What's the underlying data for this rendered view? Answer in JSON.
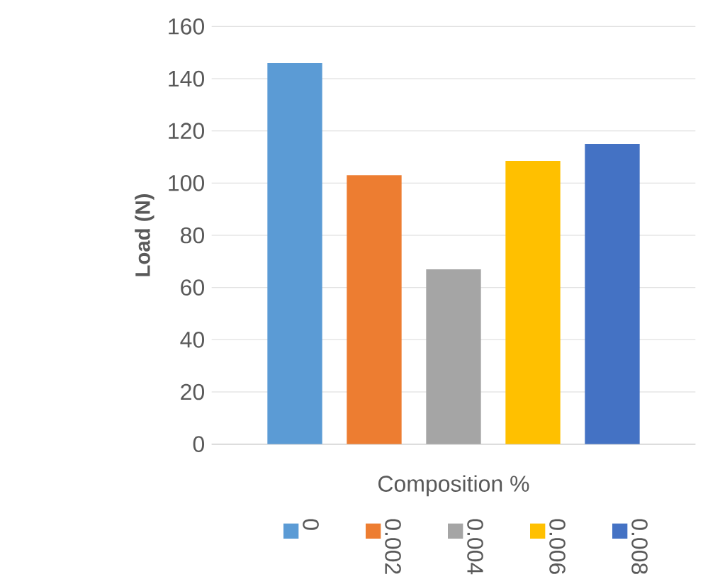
{
  "chart_data": {
    "type": "bar",
    "xlabel": "Composition %",
    "ylabel": "Load (N)",
    "categories": [
      null
    ],
    "series": [
      {
        "name": "0",
        "color": "#5b9bd5",
        "values": [
          146
        ]
      },
      {
        "name": "0.002",
        "color": "#ed7d31",
        "values": [
          103
        ]
      },
      {
        "name": "0.004",
        "color": "#a5a5a5",
        "values": [
          67
        ]
      },
      {
        "name": "0.006",
        "color": "#ffc000",
        "values": [
          108.5
        ]
      },
      {
        "name": "0.008",
        "color": "#4472c4",
        "values": [
          115
        ]
      }
    ],
    "ylim": [
      0,
      160
    ],
    "yticks": [
      0,
      20,
      40,
      60,
      80,
      100,
      120,
      140,
      160
    ],
    "grid": "y",
    "legend": "bottom"
  }
}
